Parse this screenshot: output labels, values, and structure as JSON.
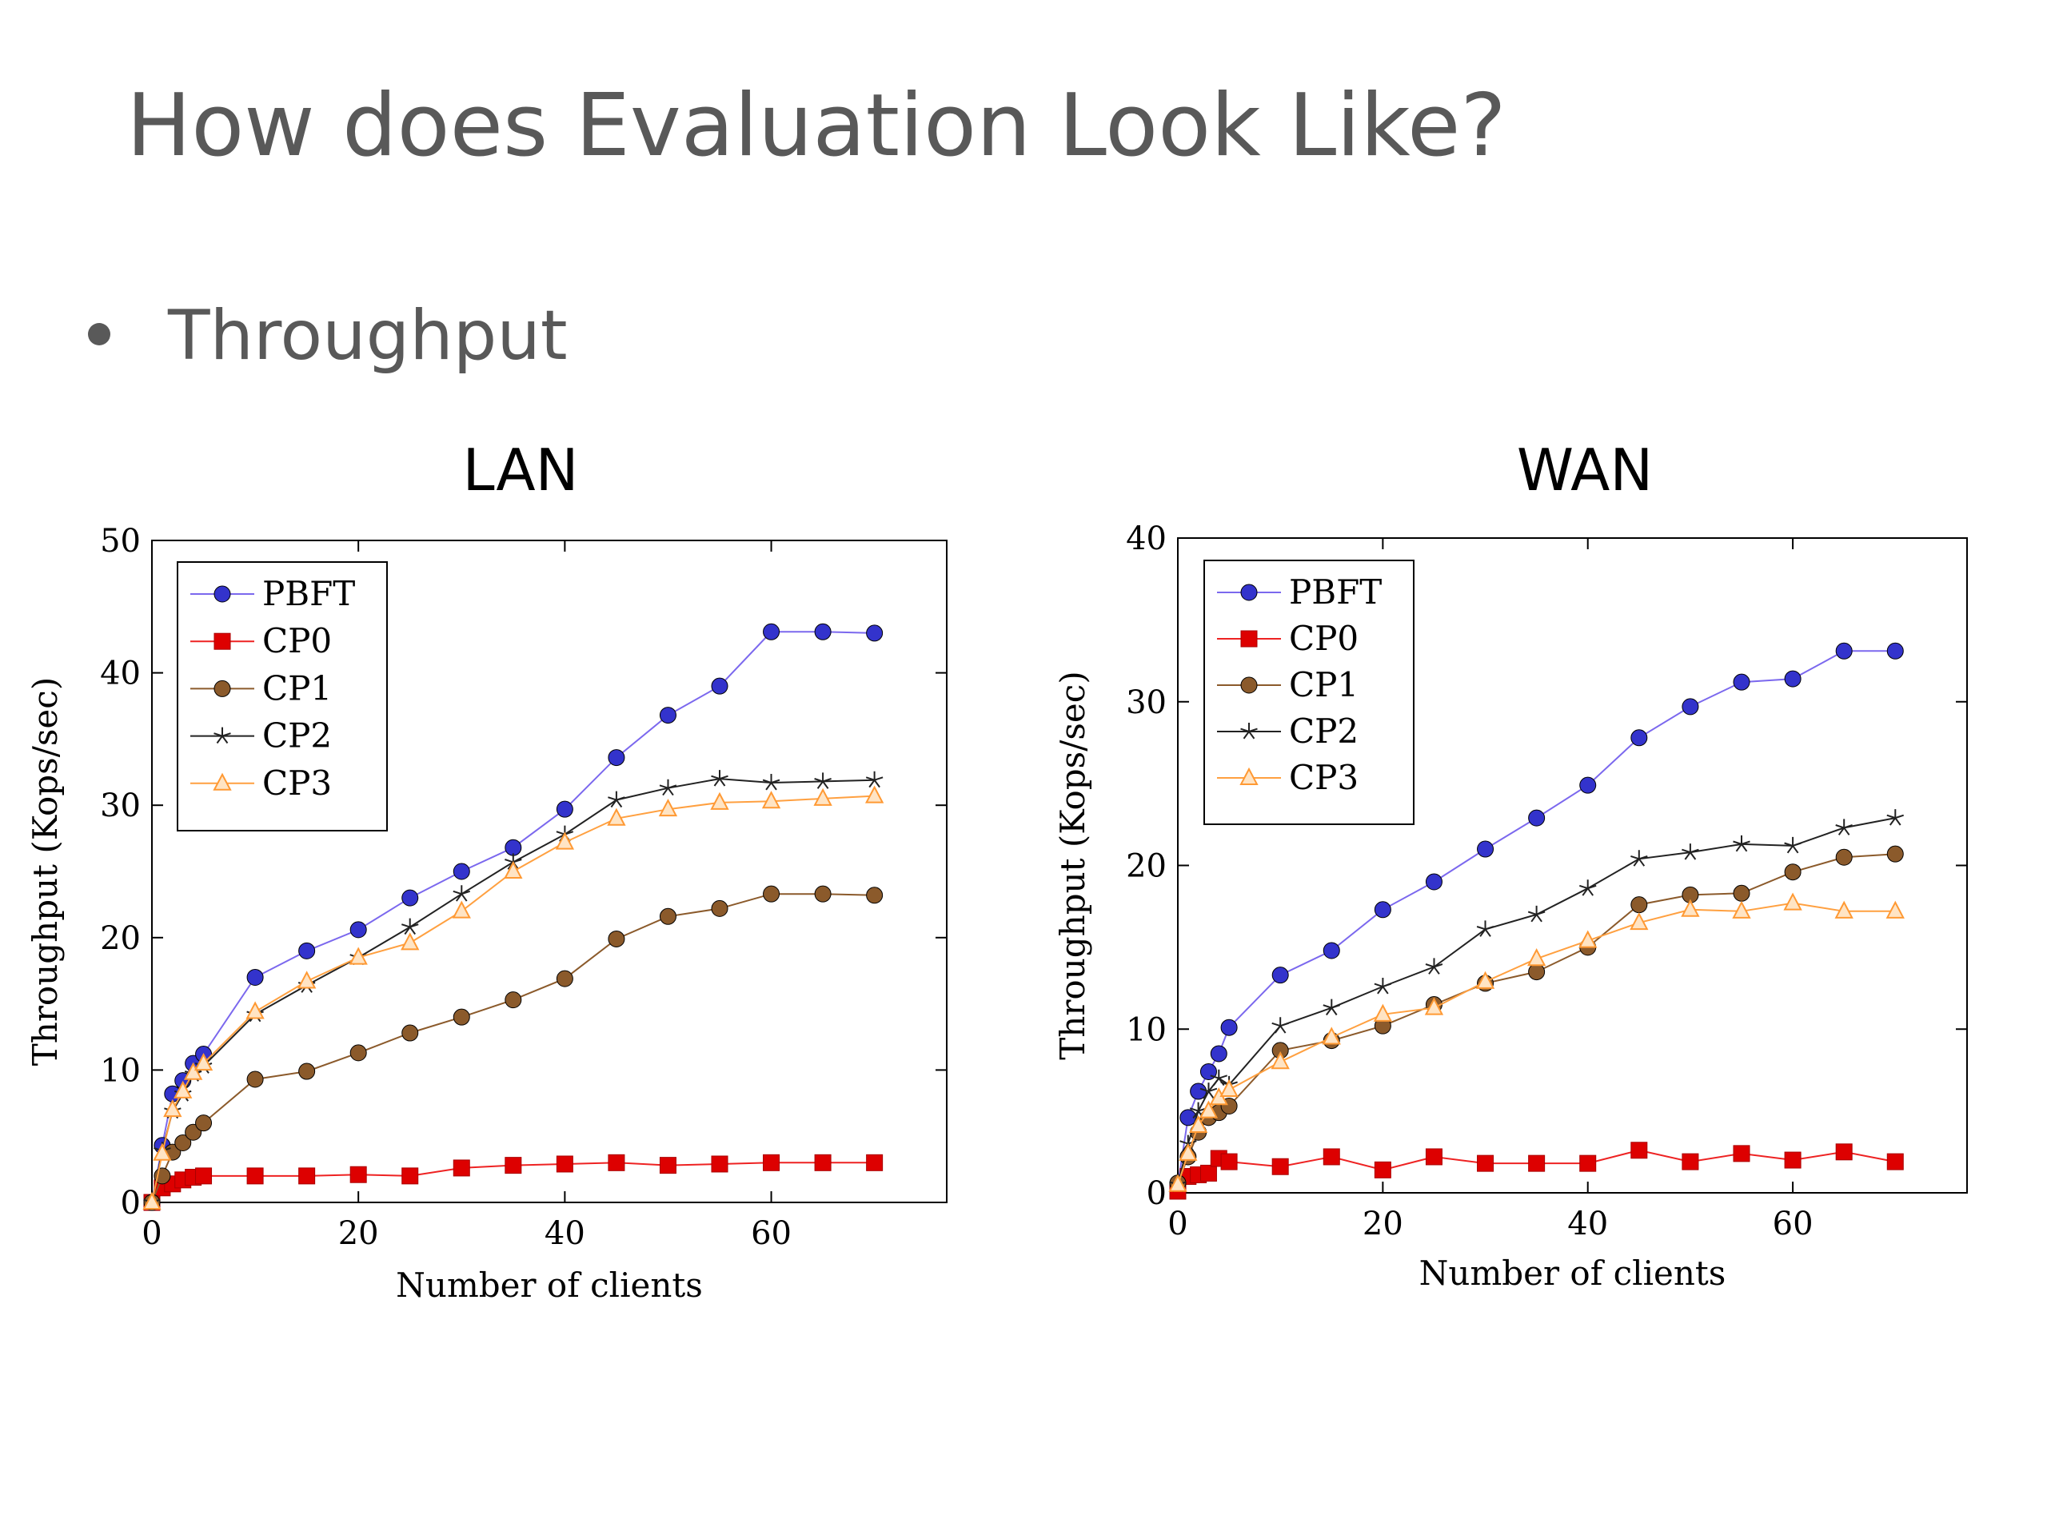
{
  "slide": {
    "title": "How does Evaluation Look Like?",
    "bullet": "Throughput"
  },
  "chart_data": [
    {
      "type": "line",
      "title": "LAN",
      "xlabel": "Number of clients",
      "ylabel": "Throughput (Kops/sec)",
      "xlim": [
        0,
        77
      ],
      "ylim": [
        0,
        50
      ],
      "xticks": [
        0,
        20,
        40,
        60
      ],
      "yticks": [
        0,
        10,
        20,
        30,
        40,
        50
      ],
      "legend_position": "top-left",
      "series": [
        {
          "name": "PBFT",
          "color": "#3333cc",
          "line_color": "#7b68ee",
          "marker": "circle",
          "x": [
            0,
            1,
            2,
            3,
            4,
            5,
            10,
            15,
            20,
            25,
            30,
            35,
            40,
            45,
            50,
            55,
            60,
            65,
            70
          ],
          "y": [
            0,
            4.3,
            8.2,
            9.2,
            10.5,
            11.2,
            17,
            19,
            20.6,
            23,
            25,
            26.8,
            29.7,
            33.6,
            36.8,
            39,
            43.1,
            43.1,
            43
          ]
        },
        {
          "name": "CP0",
          "color": "#dd0000",
          "line_color": "#ee2222",
          "marker": "square",
          "x": [
            0,
            1,
            2,
            3,
            4,
            5,
            10,
            15,
            20,
            25,
            30,
            35,
            40,
            45,
            50,
            55,
            60,
            65,
            70
          ],
          "y": [
            0,
            1.1,
            1.4,
            1.7,
            1.9,
            2.0,
            2.0,
            2.0,
            2.1,
            2.0,
            2.6,
            2.8,
            2.9,
            3.0,
            2.8,
            2.9,
            3.0,
            3.0,
            3.0
          ]
        },
        {
          "name": "CP1",
          "color": "#8b5a2b",
          "line_color": "#8b5a2b",
          "marker": "circle",
          "x": [
            0,
            1,
            2,
            3,
            4,
            5,
            10,
            15,
            20,
            25,
            30,
            35,
            40,
            45,
            50,
            55,
            60,
            65,
            70
          ],
          "y": [
            0,
            2,
            3.8,
            4.5,
            5.3,
            6,
            9.3,
            9.9,
            11.3,
            12.8,
            14,
            15.3,
            16.9,
            19.9,
            21.6,
            22.2,
            23.3,
            23.3,
            23.2
          ]
        },
        {
          "name": "CP2",
          "color": "#222222",
          "line_color": "#222222",
          "marker": "star",
          "x": [
            0,
            1,
            2,
            3,
            4,
            5,
            10,
            15,
            20,
            25,
            30,
            35,
            40,
            45,
            50,
            55,
            60,
            65,
            70
          ],
          "y": [
            0,
            3.9,
            6.9,
            8.2,
            9.7,
            10.3,
            14.2,
            16.4,
            18.5,
            20.8,
            23.3,
            25.7,
            27.8,
            30.4,
            31.3,
            32,
            31.7,
            31.8,
            31.9
          ]
        },
        {
          "name": "CP3",
          "color": "#ff9933",
          "line_color": "#ffa040",
          "marker": "triangle",
          "x": [
            0,
            1,
            2,
            3,
            4,
            5,
            10,
            15,
            20,
            25,
            30,
            35,
            40,
            45,
            50,
            55,
            60,
            65,
            70
          ],
          "y": [
            0,
            3.7,
            7.0,
            8.4,
            9.8,
            10.5,
            14.4,
            16.7,
            18.5,
            19.6,
            22,
            25,
            27.2,
            29,
            29.7,
            30.2,
            30.3,
            30.5,
            30.7
          ]
        }
      ]
    },
    {
      "type": "line",
      "title": "WAN",
      "xlabel": "Number of clients",
      "ylabel": "Throughput (Kops/sec)",
      "xlim": [
        0,
        77
      ],
      "ylim": [
        0,
        40
      ],
      "xticks": [
        0,
        20,
        40,
        60
      ],
      "yticks": [
        0,
        10,
        20,
        30,
        40
      ],
      "legend_position": "top-left",
      "series": [
        {
          "name": "PBFT",
          "color": "#3333cc",
          "line_color": "#7b68ee",
          "marker": "circle",
          "x": [
            0,
            1,
            2,
            3,
            4,
            5,
            10,
            15,
            20,
            25,
            30,
            35,
            40,
            45,
            50,
            55,
            60,
            65,
            70
          ],
          "y": [
            0.5,
            4.6,
            6.2,
            7.4,
            8.5,
            10.1,
            13.3,
            14.8,
            17.3,
            19,
            21,
            22.9,
            24.9,
            27.8,
            29.7,
            31.2,
            31.4,
            33.1,
            33.1
          ]
        },
        {
          "name": "CP0",
          "color": "#dd0000",
          "line_color": "#ee2222",
          "marker": "square",
          "x": [
            0,
            1,
            2,
            3,
            4,
            5,
            10,
            15,
            20,
            25,
            30,
            35,
            40,
            45,
            50,
            55,
            60,
            65,
            70
          ],
          "y": [
            0.1,
            1.0,
            1.1,
            1.2,
            2.1,
            1.9,
            1.6,
            2.2,
            1.4,
            2.2,
            1.8,
            1.8,
            1.8,
            2.6,
            1.9,
            2.4,
            2.0,
            2.5,
            1.9
          ]
        },
        {
          "name": "CP1",
          "color": "#8b5a2b",
          "line_color": "#8b5a2b",
          "marker": "circle",
          "x": [
            0,
            1,
            2,
            3,
            4,
            5,
            10,
            15,
            20,
            25,
            30,
            35,
            40,
            45,
            50,
            55,
            60,
            65,
            70
          ],
          "y": [
            0.6,
            2.2,
            3.7,
            4.6,
            4.9,
            5.3,
            8.7,
            9.3,
            10.2,
            11.5,
            12.8,
            13.5,
            15,
            17.6,
            18.2,
            18.3,
            19.6,
            20.5,
            20.7
          ]
        },
        {
          "name": "CP2",
          "color": "#222222",
          "line_color": "#222222",
          "marker": "star",
          "x": [
            0,
            1,
            2,
            3,
            4,
            5,
            10,
            15,
            20,
            25,
            30,
            35,
            40,
            45,
            50,
            55,
            60,
            65,
            70
          ],
          "y": [
            0.5,
            3.0,
            5.0,
            6.2,
            7.0,
            6.6,
            10.2,
            11.3,
            12.6,
            13.8,
            16.1,
            17,
            18.6,
            20.4,
            20.8,
            21.3,
            21.2,
            22.3,
            22.9
          ]
        },
        {
          "name": "CP3",
          "color": "#ff9933",
          "line_color": "#ffa040",
          "marker": "triangle",
          "x": [
            0,
            1,
            2,
            3,
            4,
            5,
            10,
            15,
            20,
            25,
            30,
            35,
            40,
            45,
            50,
            55,
            60,
            65,
            70
          ],
          "y": [
            0.5,
            2.4,
            4.1,
            5.0,
            5.8,
            6.3,
            8.0,
            9.5,
            10.9,
            11.3,
            12.9,
            14.3,
            15.4,
            16.5,
            17.3,
            17.2,
            17.7,
            17.2,
            17.2
          ]
        }
      ]
    }
  ]
}
